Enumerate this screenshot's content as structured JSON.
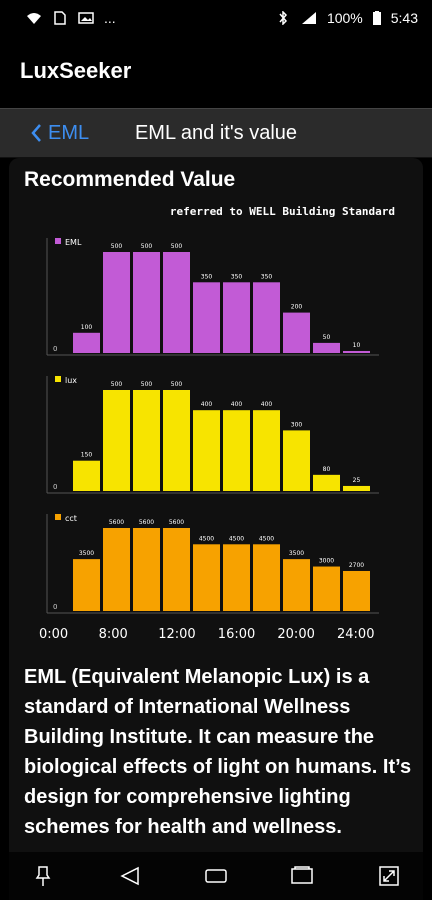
{
  "status_bar": {
    "battery": "100%",
    "time": "5:43",
    "more": "..."
  },
  "app": {
    "title": "LuxSeeker"
  },
  "nav": {
    "back_label": "EML",
    "title": "EML and it's value"
  },
  "content": {
    "heading": "Recommended Value",
    "reference": "referred to WELL Building Standard",
    "description": "EML (Equivalent Melanopic Lux) is a standard of International Wellness Building Institute. It can measure the biological effects of light on humans. It’s design for comprehensive lighting schemes for health and wellness."
  },
  "colors": {
    "eml": "#c25bd6",
    "lux": "#f7e400",
    "cct": "#f7a200",
    "link": "#3d8ef0"
  },
  "chart_data": [
    {
      "type": "bar",
      "series": [
        {
          "name": "EML",
          "values": [
            100,
            500,
            500,
            500,
            350,
            350,
            350,
            200,
            50,
            10
          ]
        }
      ],
      "zero_label": "0",
      "color": "#c25bd6"
    },
    {
      "type": "bar",
      "series": [
        {
          "name": "lux",
          "values": [
            150,
            500,
            500,
            500,
            400,
            400,
            400,
            300,
            80,
            25
          ]
        }
      ],
      "zero_label": "0",
      "color": "#f7e400"
    },
    {
      "type": "bar",
      "series": [
        {
          "name": "cct",
          "values": [
            3500,
            5600,
            5600,
            5600,
            4500,
            4500,
            4500,
            3500,
            3000,
            2700
          ]
        }
      ],
      "zero_label": "0",
      "color": "#f7a200",
      "x_ticks": [
        "0:00",
        "8:00",
        "12:00",
        "16:00",
        "20:00",
        "24:00"
      ]
    }
  ]
}
